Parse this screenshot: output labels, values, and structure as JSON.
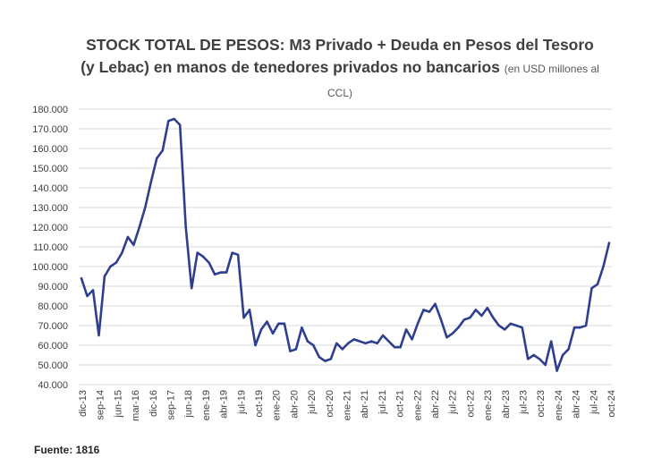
{
  "title": {
    "main": "STOCK TOTAL DE PESOS: M3 Privado + Deuda en Pesos del Tesoro (y Lebac) en manos de tenedores privados no bancarios",
    "unit": "(en USD millones al CCL)"
  },
  "source": "Fuente: 1816",
  "chart_data": {
    "type": "line",
    "title": "STOCK TOTAL DE PESOS: M3 Privado + Deuda en Pesos del Tesoro (y Lebac) en manos de tenedores privados no bancarios (en USD millones al CCL)",
    "xlabel": "",
    "ylabel": "",
    "ylim": [
      40000,
      180000
    ],
    "grid": true,
    "color": "#2f3f8f",
    "y_ticks": [
      "40.000",
      "50.000",
      "60.000",
      "70.000",
      "80.000",
      "90.000",
      "100.000",
      "110.000",
      "120.000",
      "130.000",
      "140.000",
      "150.000",
      "160.000",
      "170.000",
      "180.000"
    ],
    "x_tick_labels": [
      "dic-13",
      "sep-14",
      "jun-15",
      "mar-16",
      "dic-16",
      "sep-17",
      "jun-18",
      "ene-19",
      "abr-19",
      "jul-19",
      "oct-19",
      "ene-20",
      "abr-20",
      "jul-20",
      "oct-20",
      "ene-21",
      "abr-21",
      "jul-21",
      "oct-21",
      "ene-22",
      "abr-22",
      "jul-22",
      "oct-22",
      "ene-23",
      "abr-23",
      "jul-23",
      "oct-23",
      "ene-24",
      "abr-24",
      "jul-24",
      "oct-24"
    ],
    "series": [
      {
        "values": [
          94000,
          85000,
          88000,
          65000,
          95000,
          100000,
          102000,
          107000,
          115000,
          111000,
          120000,
          130000,
          143000,
          155000,
          159000,
          174000,
          175000,
          172000,
          120000,
          89000,
          107000,
          105000,
          102000,
          96000,
          97000,
          97000,
          107000,
          106000,
          74000,
          78000,
          60000,
          68000,
          72000,
          66000,
          71000,
          71000,
          57000,
          58000,
          69000,
          62000,
          60000,
          54000,
          52000,
          53000,
          61000,
          58000,
          61000,
          63000,
          62000,
          61000,
          62000,
          61000,
          65000,
          62000,
          59000,
          59000,
          68000,
          63000,
          71000,
          78000,
          77000,
          81000,
          73000,
          64000,
          66000,
          69000,
          73000,
          74000,
          78000,
          75000,
          79000,
          74000,
          70000,
          68000,
          71000,
          70000,
          69000,
          53000,
          55000,
          53000,
          50000,
          62000,
          47000,
          55000,
          58000,
          69000,
          69000,
          70000,
          89000,
          91000,
          100000,
          112000
        ]
      }
    ]
  }
}
